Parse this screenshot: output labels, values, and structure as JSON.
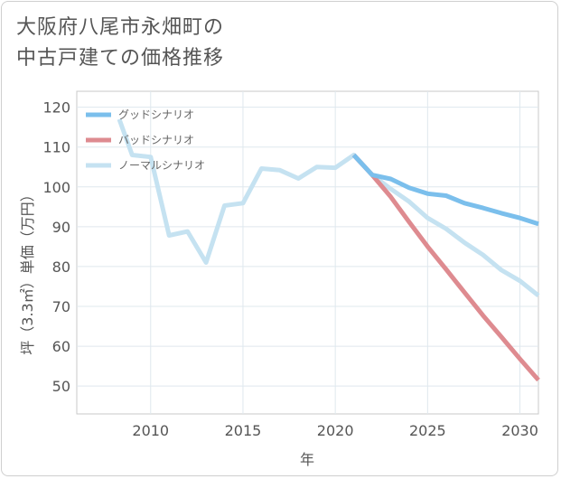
{
  "chart_data": {
    "type": "line",
    "title_lines": [
      "大阪府八尾市永畑町の",
      "中古戸建ての価格推移"
    ],
    "xlabel": "年",
    "ylabel": "坪（3.3㎡）単価（万円）",
    "xlim": [
      2006,
      2031
    ],
    "ylim": [
      43,
      124
    ],
    "x_ticks": [
      2010,
      2015,
      2020,
      2025,
      2030
    ],
    "y_ticks": [
      50,
      60,
      70,
      80,
      90,
      100,
      110,
      120
    ],
    "legend_position": "top-left",
    "series": [
      {
        "name": "グッドシナリオ",
        "color": "#7bbfec",
        "x": [
          2021,
          2022,
          2023,
          2024,
          2025,
          2026,
          2027,
          2028,
          2029,
          2030,
          2031
        ],
        "values": [
          108,
          103,
          102,
          99.8,
          98.3,
          97.8,
          95.9,
          94.7,
          93.4,
          92.2,
          90.7
        ]
      },
      {
        "name": "バッドシナリオ",
        "color": "#de8b90",
        "x": [
          2021,
          2022,
          2023,
          2024,
          2025,
          2026,
          2027,
          2028,
          2029,
          2030,
          2031
        ],
        "values": [
          108,
          103,
          97.5,
          91.2,
          85.0,
          79.3,
          73.5,
          67.7,
          62.3,
          56.8,
          51.5
        ]
      },
      {
        "name": "ノーマルシナリオ",
        "color": "#c5e2f1",
        "x": [
          2008.3,
          2009,
          2010,
          2011,
          2012,
          2013,
          2014,
          2015,
          2016,
          2017,
          2018,
          2019,
          2020,
          2021,
          2022,
          2023,
          2024,
          2025,
          2026,
          2027,
          2028,
          2029,
          2030,
          2031
        ],
        "values": [
          117,
          108,
          107.5,
          87.8,
          88.8,
          81,
          95.3,
          95.9,
          104.6,
          104.2,
          102.1,
          105,
          104.8,
          108,
          103,
          99.5,
          96.3,
          92.2,
          89.5,
          86,
          82.9,
          79.1,
          76.4,
          72.7
        ]
      }
    ]
  }
}
